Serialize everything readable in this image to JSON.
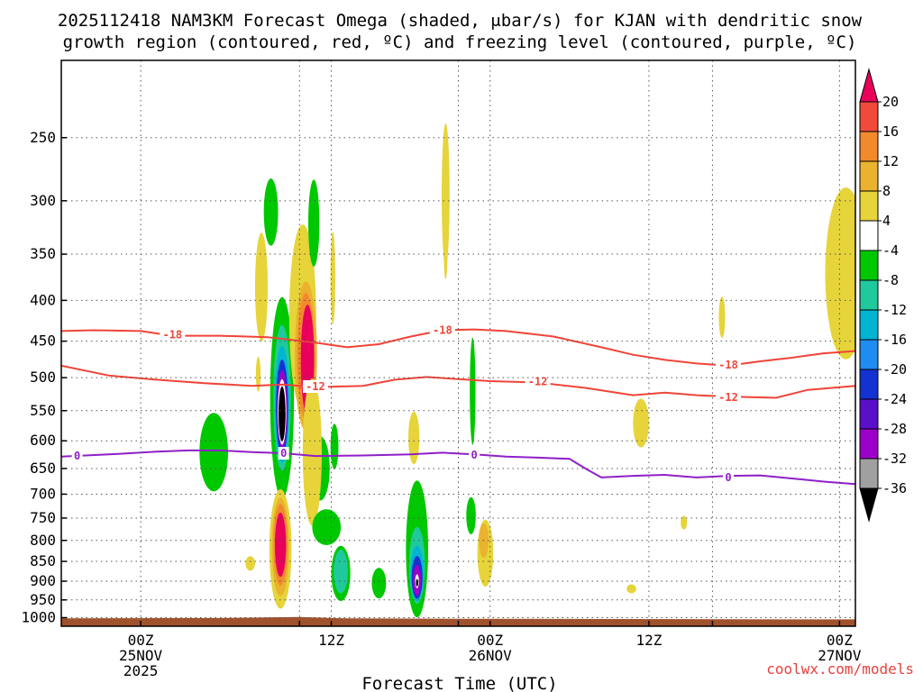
{
  "title_line1": "2025112418 NAM3KM Forecast Omega (shaded, μbar/s) for KJAN with dendritic snow",
  "title_line2": "growth region (contoured, red, ºC) and freezing level (contoured, purple, ºC)",
  "xlabel": "Forecast Time (UTC)",
  "credit": "coolwx.com/models",
  "colors": {
    "dgz_contour": "#f04438",
    "freezing_contour": "#8f1fc8",
    "ground": "#a0522d"
  },
  "chart_data": {
    "type": "time-height section",
    "x_domain_hours": [
      -5,
      45
    ],
    "y_domain_hPa": [
      200,
      1025
    ],
    "x_ticks": [
      {
        "hour": 0,
        "label": "00Z",
        "sub1": "25NOV",
        "sub2": "2025"
      },
      {
        "hour": 10,
        "label": "",
        "sub1": "",
        "sub2": ""
      },
      {
        "hour": 12,
        "label": "12Z",
        "sub1": "",
        "sub2": ""
      },
      {
        "hour": 20,
        "label": "",
        "sub1": "",
        "sub2": ""
      },
      {
        "hour": 22,
        "label": "00Z",
        "sub1": "26NOV",
        "sub2": ""
      },
      {
        "hour": 32,
        "label": "12Z",
        "sub1": "",
        "sub2": ""
      },
      {
        "hour": 36,
        "label": "",
        "sub1": "",
        "sub2": ""
      },
      {
        "hour": 44,
        "label": "00Z",
        "sub1": "27NOV",
        "sub2": ""
      }
    ],
    "y_ticks": [
      250,
      300,
      350,
      400,
      450,
      500,
      550,
      600,
      650,
      700,
      750,
      800,
      850,
      900,
      950,
      1000
    ],
    "colorbar": {
      "levels": [
        20,
        16,
        12,
        8,
        4,
        -4,
        -8,
        -12,
        -16,
        -20,
        -24,
        -28,
        -32,
        -36
      ],
      "colors": [
        "#e8005a",
        "#f04a3a",
        "#f28a2c",
        "#eab22f",
        "#e6d43a",
        "#ffffff",
        "#00c800",
        "#1fc99c",
        "#00b4d2",
        "#1e8cf0",
        "#1432d2",
        "#5a0fc8",
        "#9b00c8",
        "#a0a0a0",
        "#000000"
      ],
      "units": "μbar/s"
    },
    "contours": [
      {
        "name": "-18",
        "color": "dgz",
        "points": [
          [
            -5,
            437
          ],
          [
            -3,
            436
          ],
          [
            0,
            437
          ],
          [
            2,
            443
          ],
          [
            5,
            443
          ],
          [
            8,
            445
          ],
          [
            11,
            452
          ],
          [
            13,
            458
          ],
          [
            15,
            454
          ],
          [
            17,
            444
          ],
          [
            19,
            436
          ],
          [
            21,
            435
          ],
          [
            23,
            437
          ],
          [
            26,
            444
          ],
          [
            29,
            458
          ],
          [
            31,
            468
          ],
          [
            33,
            475
          ],
          [
            35,
            480
          ],
          [
            37,
            483
          ],
          [
            39,
            477
          ],
          [
            41,
            472
          ],
          [
            43,
            466
          ],
          [
            45,
            463
          ]
        ],
        "labels": [
          [
            2,
            442
          ],
          [
            19,
            436
          ],
          [
            37,
            482
          ]
        ]
      },
      {
        "name": "-12",
        "color": "dgz",
        "points": [
          [
            -5,
            483
          ],
          [
            -2,
            497
          ],
          [
            1,
            503
          ],
          [
            4,
            508
          ],
          [
            7,
            512
          ],
          [
            9,
            510
          ],
          [
            11,
            514
          ],
          [
            14,
            512
          ],
          [
            16,
            503
          ],
          [
            18,
            499
          ],
          [
            20,
            502
          ],
          [
            22,
            505
          ],
          [
            25,
            507
          ],
          [
            28,
            515
          ],
          [
            31,
            526
          ],
          [
            33,
            522
          ],
          [
            35,
            526
          ],
          [
            37,
            528
          ],
          [
            40,
            530
          ],
          [
            42,
            518
          ],
          [
            45,
            512
          ]
        ],
        "labels": [
          [
            11,
            513
          ],
          [
            25,
            506
          ],
          [
            37,
            529
          ]
        ]
      },
      {
        "name": "0",
        "color": "frz",
        "points": [
          [
            -5,
            628
          ],
          [
            -2,
            624
          ],
          [
            1,
            619
          ],
          [
            3,
            617
          ],
          [
            5,
            617
          ],
          [
            7,
            620
          ],
          [
            9,
            622
          ],
          [
            11,
            627
          ],
          [
            14,
            626
          ],
          [
            17,
            624
          ],
          [
            19,
            621
          ],
          [
            21,
            624
          ],
          [
            23,
            628
          ],
          [
            25,
            630
          ],
          [
            27,
            632
          ],
          [
            28,
            650
          ],
          [
            29,
            667
          ],
          [
            31,
            664
          ],
          [
            33,
            662
          ],
          [
            35,
            667
          ],
          [
            37,
            664
          ],
          [
            39,
            663
          ],
          [
            41,
            669
          ],
          [
            43,
            675
          ],
          [
            45,
            680
          ]
        ],
        "labels": [
          [
            -4,
            627
          ],
          [
            9,
            622
          ],
          [
            21,
            625
          ],
          [
            37,
            667
          ]
        ]
      }
    ],
    "omega_cells": [
      {
        "hour": 4.6,
        "p": 620,
        "rx": 0.9,
        "rp": 70,
        "color": "#00c800"
      },
      {
        "hour": 8.9,
        "p": 530,
        "rx": 0.75,
        "rp": 150,
        "color": "#00c800"
      },
      {
        "hour": 8.9,
        "p": 530,
        "rx": 0.55,
        "rp": 110,
        "color": "#1fc99c"
      },
      {
        "hour": 8.9,
        "p": 540,
        "rx": 0.45,
        "rp": 90,
        "color": "#00b4d2"
      },
      {
        "hour": 8.9,
        "p": 545,
        "rx": 0.38,
        "rp": 75,
        "color": "#1432d2"
      },
      {
        "hour": 8.9,
        "p": 548,
        "rx": 0.32,
        "rp": 62,
        "color": "#9b00c8"
      },
      {
        "hour": 8.9,
        "p": 552,
        "rx": 0.27,
        "rp": 52,
        "color": "#ffffff"
      },
      {
        "hour": 8.9,
        "p": 555,
        "rx": 0.22,
        "rp": 44,
        "color": "#000000"
      },
      {
        "hour": 8.8,
        "p": 820,
        "rx": 0.7,
        "rp": 140,
        "color": "#e6d43a"
      },
      {
        "hour": 8.8,
        "p": 815,
        "rx": 0.55,
        "rp": 115,
        "color": "#eab22f"
      },
      {
        "hour": 8.8,
        "p": 810,
        "rx": 0.45,
        "rp": 95,
        "color": "#f28a2c"
      },
      {
        "hour": 8.8,
        "p": 810,
        "rx": 0.35,
        "rp": 75,
        "color": "#e8005a"
      },
      {
        "hour": 10.2,
        "p": 420,
        "rx": 0.85,
        "rp": 110,
        "color": "#e6d43a"
      },
      {
        "hour": 10.4,
        "p": 470,
        "rx": 0.7,
        "rp": 100,
        "color": "#eab22f"
      },
      {
        "hour": 10.4,
        "p": 470,
        "rx": 0.55,
        "rp": 85,
        "color": "#f28a2c"
      },
      {
        "hour": 10.5,
        "p": 475,
        "rx": 0.42,
        "rp": 75,
        "color": "#e8005a"
      },
      {
        "hour": 11.3,
        "p": 650,
        "rx": 0.6,
        "rp": 60,
        "color": "#00c800"
      },
      {
        "hour": 10.8,
        "p": 620,
        "rx": 0.6,
        "rp": 130,
        "color": "#e6d43a"
      },
      {
        "hour": 8.2,
        "p": 310,
        "rx": 0.45,
        "rp": 30,
        "color": "#00c800"
      },
      {
        "hour": 10.9,
        "p": 320,
        "rx": 0.35,
        "rp": 40,
        "color": "#00c800"
      },
      {
        "hour": 7.6,
        "p": 385,
        "rx": 0.4,
        "rp": 60,
        "color": "#e6d43a"
      },
      {
        "hour": 12.1,
        "p": 375,
        "rx": 0.15,
        "rp": 50,
        "color": "#e6d43a"
      },
      {
        "hour": 11.7,
        "p": 770,
        "rx": 0.9,
        "rp": 40,
        "color": "#00c800"
      },
      {
        "hour": 12.6,
        "p": 880,
        "rx": 0.6,
        "rp": 70,
        "color": "#00c800"
      },
      {
        "hour": 12.6,
        "p": 875,
        "rx": 0.45,
        "rp": 55,
        "color": "#1fc99c"
      },
      {
        "hour": 15.0,
        "p": 905,
        "rx": 0.45,
        "rp": 40,
        "color": "#00c800"
      },
      {
        "hour": 12.2,
        "p": 610,
        "rx": 0.25,
        "rp": 40,
        "color": "#00c800"
      },
      {
        "hour": 17.2,
        "p": 595,
        "rx": 0.35,
        "rp": 45,
        "color": "#e6d43a"
      },
      {
        "hour": 17.4,
        "p": 820,
        "rx": 0.7,
        "rp": 160,
        "color": "#00c800"
      },
      {
        "hour": 17.4,
        "p": 860,
        "rx": 0.5,
        "rp": 95,
        "color": "#1fc99c"
      },
      {
        "hour": 17.4,
        "p": 880,
        "rx": 0.42,
        "rp": 70,
        "color": "#00b4d2"
      },
      {
        "hour": 17.4,
        "p": 890,
        "rx": 0.34,
        "rp": 55,
        "color": "#1432d2"
      },
      {
        "hour": 17.4,
        "p": 898,
        "rx": 0.25,
        "rp": 40,
        "color": "#9b00c8"
      },
      {
        "hour": 17.4,
        "p": 900,
        "rx": 0.12,
        "rp": 18,
        "color": "#ffffff"
      },
      {
        "hour": 17.4,
        "p": 904,
        "rx": 0.07,
        "rp": 10,
        "color": "#000000"
      },
      {
        "hour": 19.2,
        "p": 295,
        "rx": 0.25,
        "rp": 60,
        "color": "#e6d43a"
      },
      {
        "hour": 19.2,
        "p": 345,
        "rx": 0.12,
        "rp": 30,
        "color": "#e6d43a"
      },
      {
        "hour": 20.9,
        "p": 520,
        "rx": 0.18,
        "rp": 80,
        "color": "#00c800"
      },
      {
        "hour": 20.8,
        "p": 745,
        "rx": 0.3,
        "rp": 40,
        "color": "#00c800"
      },
      {
        "hour": 21.7,
        "p": 830,
        "rx": 0.5,
        "rp": 80,
        "color": "#e6d43a"
      },
      {
        "hour": 21.6,
        "p": 800,
        "rx": 0.3,
        "rp": 40,
        "color": "#eab22f"
      },
      {
        "hour": 31.5,
        "p": 570,
        "rx": 0.5,
        "rp": 40,
        "color": "#e6d43a"
      },
      {
        "hour": 34.2,
        "p": 760,
        "rx": 0.2,
        "rp": 15,
        "color": "#e6d43a"
      },
      {
        "hour": 30.9,
        "p": 920,
        "rx": 0.3,
        "rp": 12,
        "color": "#e6d43a"
      },
      {
        "hour": 36.6,
        "p": 420,
        "rx": 0.2,
        "rp": 25,
        "color": "#e6d43a"
      },
      {
        "hour": 44.4,
        "p": 370,
        "rx": 1.3,
        "rp": 90,
        "color": "#e6d43a"
      },
      {
        "hour": 6.9,
        "p": 855,
        "rx": 0.3,
        "rp": 18,
        "color": "#e6d43a"
      },
      {
        "hour": 7.4,
        "p": 495,
        "rx": 0.15,
        "rp": 25,
        "color": "#e6d43a"
      }
    ]
  }
}
